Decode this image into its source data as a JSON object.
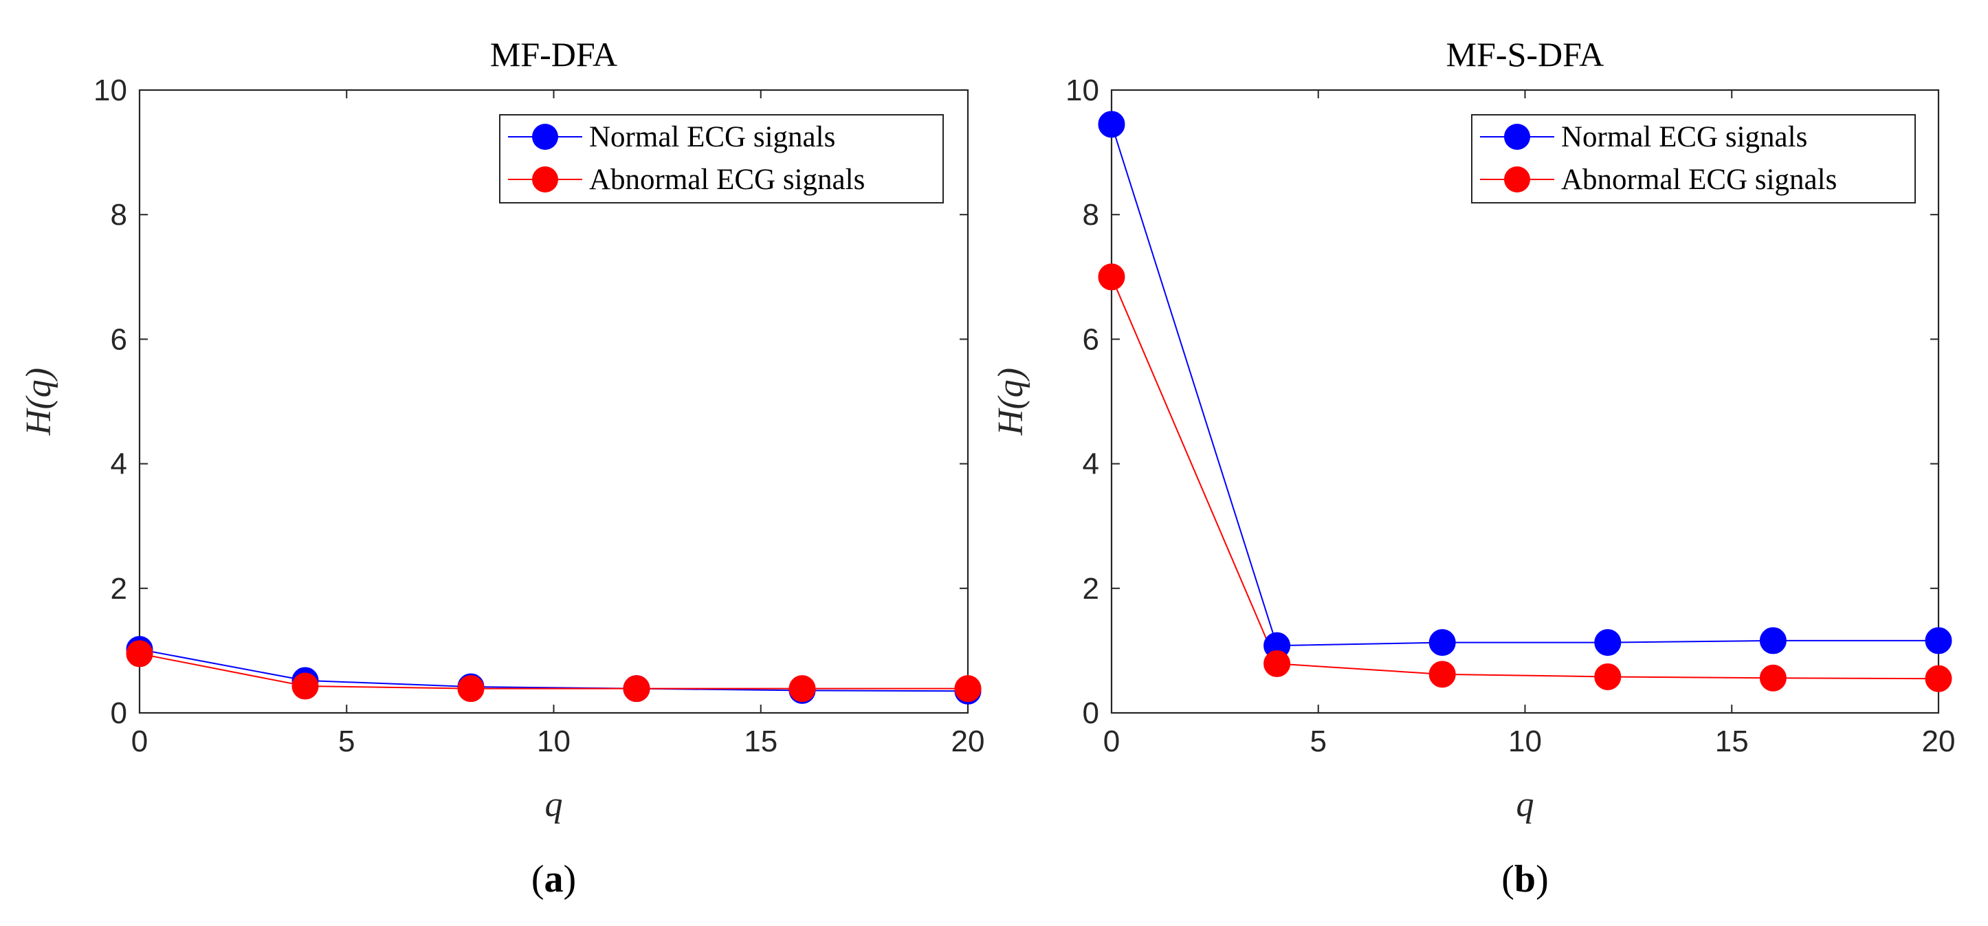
{
  "chart_data": [
    {
      "type": "line",
      "title": "MF-DFA",
      "xlabel": "q",
      "ylabel": "H(q)",
      "panel_label": {
        "open": "(",
        "letter": "a",
        "close": ")"
      },
      "xlim": [
        0,
        20
      ],
      "ylim": [
        0,
        10
      ],
      "xticks": [
        0,
        5,
        10,
        15,
        20
      ],
      "yticks": [
        0,
        2,
        4,
        6,
        8,
        10
      ],
      "x": [
        0,
        4,
        8,
        12,
        16,
        20
      ],
      "legend_position": "top-right",
      "series": [
        {
          "name": "Normal ECG signals",
          "color": "#0000ff",
          "values": [
            1.02,
            0.52,
            0.42,
            0.39,
            0.36,
            0.35
          ]
        },
        {
          "name": "Abnormal ECG signals",
          "color": "#ff0000",
          "values": [
            0.95,
            0.43,
            0.39,
            0.39,
            0.39,
            0.39
          ]
        }
      ]
    },
    {
      "type": "line",
      "title": "MF-S-DFA",
      "xlabel": "q",
      "ylabel": "H(q)",
      "panel_label": {
        "open": "(",
        "letter": "b",
        "close": ")"
      },
      "xlim": [
        0,
        20
      ],
      "ylim": [
        0,
        10
      ],
      "xticks": [
        0,
        5,
        10,
        15,
        20
      ],
      "yticks": [
        0,
        2,
        4,
        6,
        8,
        10
      ],
      "x": [
        0,
        4,
        8,
        12,
        16,
        20
      ],
      "legend_position": "top-right",
      "series": [
        {
          "name": "Normal ECG signals",
          "color": "#0000ff",
          "values": [
            9.45,
            1.08,
            1.13,
            1.13,
            1.16,
            1.16
          ]
        },
        {
          "name": "Abnormal ECG signals",
          "color": "#ff0000",
          "values": [
            7.0,
            0.79,
            0.62,
            0.58,
            0.56,
            0.55
          ]
        }
      ]
    }
  ]
}
